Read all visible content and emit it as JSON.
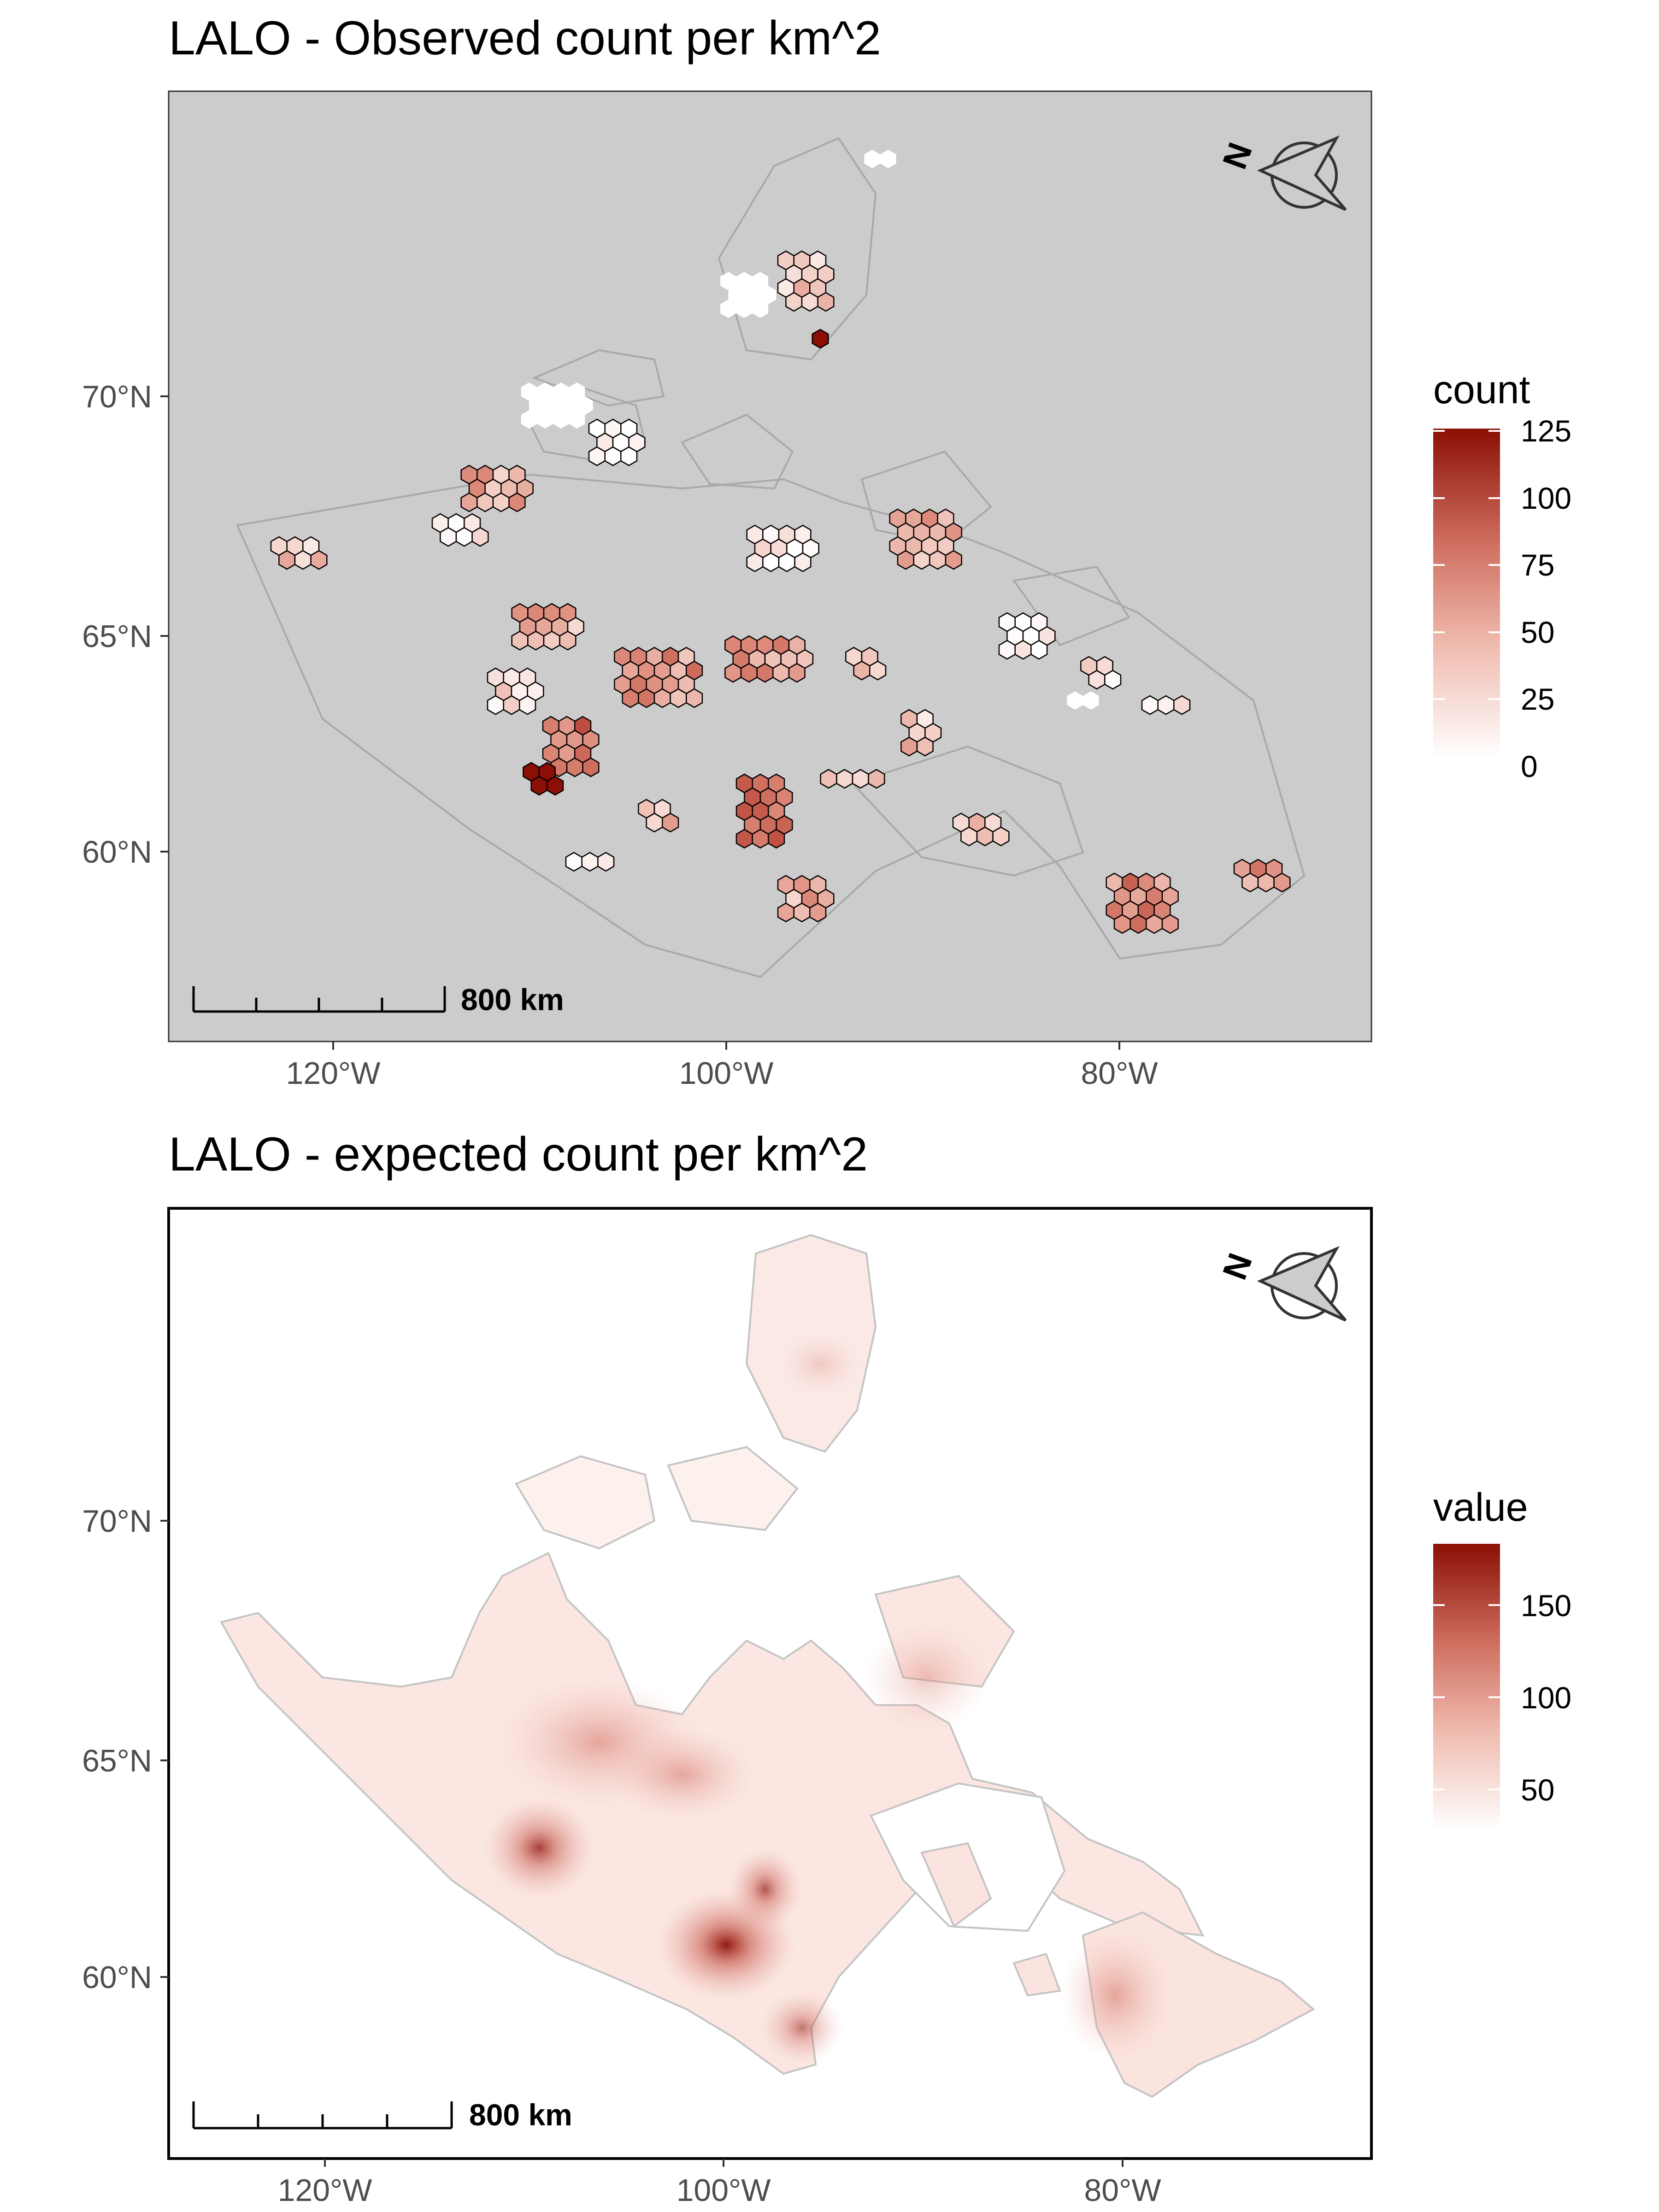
{
  "panels": [
    {
      "id": "observed",
      "title": "LALO - Observed count per km^2",
      "x_ticks": [
        {
          "label": "120°W",
          "lon": -120
        },
        {
          "label": "100°W",
          "lon": -100
        },
        {
          "label": "80°W",
          "lon": -80
        }
      ],
      "y_ticks": [
        {
          "label": "70°N",
          "lat": 70
        },
        {
          "label": "65°N",
          "lat": 65
        },
        {
          "label": "60°N",
          "lat": 60
        }
      ],
      "legend": {
        "title": "count",
        "labels": [
          "125",
          "100",
          "75",
          "50",
          "25",
          "0"
        ],
        "range": [
          0,
          125
        ]
      },
      "scale_bar_label": "800 km",
      "north_label": "N",
      "background": "#cccccc"
    },
    {
      "id": "expected",
      "title": "LALO - expected count per km^2",
      "x_ticks": [
        {
          "label": "120°W",
          "lon": -120
        },
        {
          "label": "100°W",
          "lon": -100
        },
        {
          "label": "80°W",
          "lon": -80
        }
      ],
      "y_ticks": [
        {
          "label": "70°N",
          "lat": 70
        },
        {
          "label": "65°N",
          "lat": 65
        },
        {
          "label": "60°N",
          "lat": 60
        }
      ],
      "legend": {
        "title": "value",
        "labels": [
          "150",
          "100",
          "50"
        ],
        "range": [
          0,
          185
        ]
      },
      "scale_bar_label": "800 km",
      "north_label": "N",
      "background": "#ffffff"
    }
  ],
  "colors": {
    "low": "#ffffff",
    "high": "#8b0f05",
    "land_outline": "#a9a9a9"
  },
  "chart_data": {
    "type": "heatmap",
    "species": "LALO",
    "observed_hexes_approx": [
      {
        "lon": -110.5,
        "lat": 61.5,
        "count": 118
      },
      {
        "lon": -93.0,
        "lat": 72.5,
        "count": 125
      },
      {
        "lon": -97.0,
        "lat": 61.8,
        "count": 80
      },
      {
        "lon": -74.0,
        "lat": 59.7,
        "count": 95
      },
      {
        "lon": -98.0,
        "lat": 64.0,
        "count": 70
      },
      {
        "lon": -103.5,
        "lat": 64.3,
        "count": 65
      },
      {
        "lon": -82.0,
        "lat": 59.0,
        "count": 55
      },
      {
        "lon": -88.0,
        "lat": 67.2,
        "count": 50
      },
      {
        "lon": -121.0,
        "lat": 67.0,
        "count": 40
      },
      {
        "lon": -110.0,
        "lat": 68.0,
        "count": 45
      },
      {
        "lon": -93.0,
        "lat": 59.0,
        "count": 35
      },
      {
        "lon": -96.0,
        "lat": 67.8,
        "count": 20
      },
      {
        "lon": -86.0,
        "lat": 65.0,
        "count": 10
      },
      {
        "lon": -103.0,
        "lat": 70.0,
        "count": 5
      }
    ],
    "expected_hotspots_approx": [
      {
        "lon": -99.5,
        "lat": 60.6,
        "value": 185
      },
      {
        "lon": -111.0,
        "lat": 61.8,
        "value": 130
      },
      {
        "lon": -97.5,
        "lat": 61.5,
        "value": 110
      },
      {
        "lon": -94.0,
        "lat": 58.5,
        "value": 90
      },
      {
        "lon": -107.0,
        "lat": 64.5,
        "value": 80
      },
      {
        "lon": -103.0,
        "lat": 64.3,
        "value": 70
      },
      {
        "lon": -83.0,
        "lat": 59.5,
        "value": 60
      },
      {
        "lon": -88.0,
        "lat": 67.0,
        "value": 45
      },
      {
        "lon": -93.0,
        "lat": 72.5,
        "value": 40
      }
    ]
  }
}
